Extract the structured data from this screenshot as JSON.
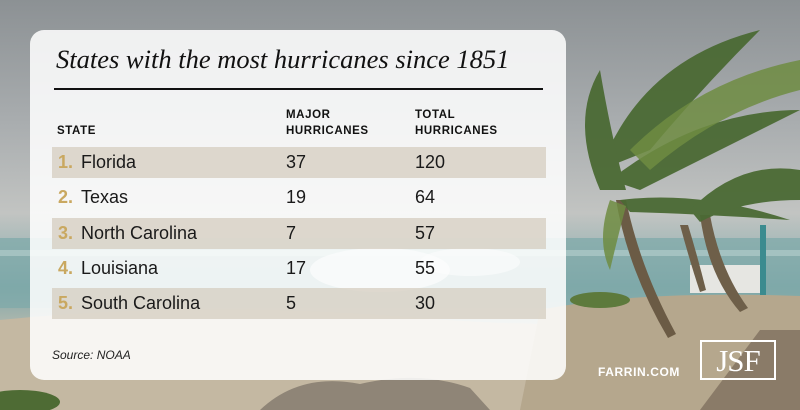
{
  "title": "States with the most hurricanes since 1851",
  "headers": {
    "state": "STATE",
    "major_line1": "MAJOR",
    "major_line2": "HURRICANES",
    "total_line1": "TOTAL",
    "total_line2": "HURRICANES"
  },
  "rows": [
    {
      "rank": "1.",
      "state": "Florida",
      "major": "37",
      "total": "120"
    },
    {
      "rank": "2.",
      "state": "Texas",
      "major": "19",
      "total": "64"
    },
    {
      "rank": "3.",
      "state": "North Carolina",
      "major": "7",
      "total": "57"
    },
    {
      "rank": "4.",
      "state": "Louisiana",
      "major": "17",
      "total": "55"
    },
    {
      "rank": "5.",
      "state": "South Carolina",
      "major": "5",
      "total": "30"
    }
  ],
  "source": "Source: NOAA",
  "brand": {
    "site": "FARRIN.COM",
    "logo_text": "JSF"
  },
  "colors": {
    "rank_gold": "#c9a860",
    "row_shade": "#d6cec1",
    "card_bg": "#ffffff"
  }
}
